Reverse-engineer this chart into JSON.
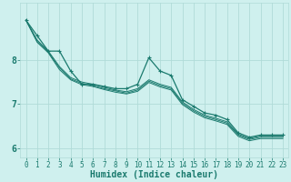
{
  "xlabel": "Humidex (Indice chaleur)",
  "ylabel": "",
  "background_color": "#cff0ee",
  "grid_color": "#b0dbd8",
  "line_color": "#1a7a6e",
  "xlim": [
    -0.5,
    23.5
  ],
  "ylim": [
    5.8,
    9.3
  ],
  "yticks": [
    6,
    7,
    8
  ],
  "xticks": [
    0,
    1,
    2,
    3,
    4,
    5,
    6,
    7,
    8,
    9,
    10,
    11,
    12,
    13,
    14,
    15,
    16,
    17,
    18,
    19,
    20,
    21,
    22,
    23
  ],
  "series": [
    [
      8.9,
      8.55,
      8.2,
      8.2,
      7.75,
      7.45,
      7.45,
      7.4,
      7.35,
      7.35,
      7.45,
      8.05,
      7.75,
      7.65,
      7.1,
      6.95,
      6.8,
      6.75,
      6.65,
      6.35,
      6.25,
      6.3,
      6.3,
      6.3
    ],
    [
      8.9,
      8.45,
      8.2,
      7.85,
      7.6,
      7.5,
      7.45,
      7.38,
      7.32,
      7.28,
      7.35,
      7.55,
      7.45,
      7.38,
      7.05,
      6.88,
      6.75,
      6.68,
      6.6,
      6.32,
      6.22,
      6.28,
      6.28,
      6.28
    ],
    [
      8.9,
      8.42,
      8.18,
      7.82,
      7.57,
      7.47,
      7.42,
      7.35,
      7.3,
      7.25,
      7.32,
      7.52,
      7.42,
      7.35,
      7.02,
      6.85,
      6.72,
      6.65,
      6.57,
      6.3,
      6.2,
      6.25,
      6.25,
      6.25
    ],
    [
      8.9,
      8.4,
      8.16,
      7.78,
      7.55,
      7.44,
      7.4,
      7.33,
      7.27,
      7.23,
      7.29,
      7.49,
      7.39,
      7.32,
      6.99,
      6.82,
      6.69,
      6.62,
      6.54,
      6.27,
      6.17,
      6.22,
      6.22,
      6.22
    ]
  ],
  "font_color": "#1a7a6e",
  "tick_font_size": 5.5,
  "label_font_size": 7.0
}
